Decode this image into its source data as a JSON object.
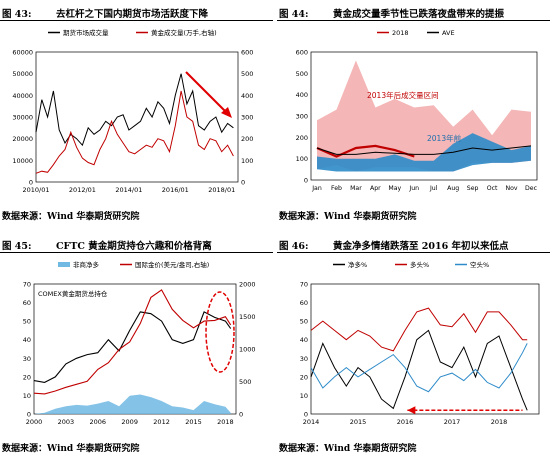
{
  "panels": [
    {
      "number": "图 43:",
      "title": "去杠杆之下国内期货市场活跃度下降",
      "source": "数据来源：Wind  华泰期货研究院",
      "chart_data": {
        "type": "line",
        "series": [
          {
            "name": "期货市场成交量",
            "color": "#000000",
            "axis": "left",
            "x": [
              2010.0,
              2010.25,
              2010.5,
              2010.75,
              2011.0,
              2011.25,
              2011.5,
              2011.75,
              2012.0,
              2012.25,
              2012.5,
              2012.75,
              2013.0,
              2013.25,
              2013.5,
              2013.75,
              2014.0,
              2014.25,
              2014.5,
              2014.75,
              2015.0,
              2015.25,
              2015.5,
              2015.75,
              2016.0,
              2016.25,
              2016.5,
              2016.75,
              2017.0,
              2017.25,
              2017.5,
              2017.75,
              2018.0,
              2018.25,
              2018.5
            ],
            "y": [
              23000,
              38000,
              30000,
              42000,
              24000,
              18000,
              22000,
              20000,
              17000,
              25000,
              22000,
              24000,
              28000,
              26000,
              30000,
              31000,
              24000,
              26000,
              28000,
              34000,
              30000,
              37000,
              34000,
              27000,
              40000,
              50000,
              36000,
              42000,
              26000,
              24000,
              28000,
              30000,
              23000,
              27000,
              25000
            ]
          },
          {
            "name": "黄金成交量(万手,右轴)",
            "color": "#c00000",
            "axis": "right",
            "x": [
              2010.0,
              2010.25,
              2010.5,
              2010.75,
              2011.0,
              2011.25,
              2011.5,
              2011.75,
              2012.0,
              2012.25,
              2012.5,
              2012.75,
              2013.0,
              2013.25,
              2013.5,
              2013.75,
              2014.0,
              2014.25,
              2014.5,
              2014.75,
              2015.0,
              2015.25,
              2015.5,
              2015.75,
              2016.0,
              2016.25,
              2016.5,
              2016.75,
              2017.0,
              2017.25,
              2017.5,
              2017.75,
              2018.0,
              2018.25,
              2018.5
            ],
            "y": [
              40,
              50,
              45,
              80,
              120,
              150,
              230,
              160,
              110,
              90,
              80,
              150,
              200,
              280,
              220,
              180,
              140,
              130,
              150,
              170,
              160,
              200,
              190,
              140,
              260,
              420,
              300,
              280,
              170,
              150,
              200,
              190,
              140,
              170,
              120
            ]
          }
        ],
        "xticks": [
          "2010/01",
          "2012/01",
          "2014/01",
          "2016/01",
          "2018/01"
        ],
        "ylim": [
          0,
          60000
        ],
        "yticks": [
          "0",
          "10000",
          "20000",
          "30000",
          "40000",
          "50000",
          "60000"
        ],
        "y2lim": [
          0,
          600
        ],
        "y2ticks": [
          "0",
          "100",
          "200",
          "300",
          "400",
          "500",
          "600"
        ]
      }
    },
    {
      "number": "图 44:",
      "title": "黄金成交量季节性已跌落夜盘带来的提振",
      "source": "数据来源：Wind  华泰期货研究院",
      "chart_data": {
        "type": "area",
        "categories": [
          "Jan",
          "Feb",
          "Mar",
          "Apr",
          "May",
          "Jun",
          "Jul",
          "Aug",
          "Sep",
          "Oct",
          "Nov",
          "Dec"
        ],
        "range_band": {
          "upper": [
            280,
            330,
            560,
            340,
            380,
            340,
            350,
            250,
            330,
            210,
            330,
            320
          ],
          "lower": [
            50,
            70,
            40,
            60,
            60,
            60,
            40,
            40,
            80,
            80,
            80,
            90
          ],
          "color": "#f4b6b6"
        },
        "post2013_band": {
          "upper": [
            110,
            100,
            100,
            100,
            120,
            90,
            90,
            170,
            220,
            180,
            140,
            160
          ],
          "lower": [
            50,
            40,
            40,
            40,
            40,
            40,
            40,
            40,
            70,
            80,
            80,
            90
          ],
          "color": "#2e8bc9"
        },
        "series": [
          {
            "name": "2018",
            "color": "#c00000",
            "values": [
              150,
              110,
              150,
              160,
              140,
              110,
              null,
              null,
              null,
              null,
              null,
              null
            ]
          },
          {
            "name": "AVE",
            "color": "#000000",
            "values": [
              150,
              120,
              120,
              130,
              125,
              120,
              120,
              130,
              150,
              140,
              150,
              160
            ]
          }
        ],
        "ylim": [
          0,
          600
        ],
        "yticks": [
          "0",
          "100",
          "200",
          "300",
          "400",
          "500",
          "600"
        ],
        "annotations": [
          "2013年后成交量区间",
          "2013年前"
        ]
      }
    },
    {
      "number": "图 45:",
      "title": "CFTC 黄金期货持仓六趣和价格背离",
      "source": "数据来源：Wind  华泰期货研究院",
      "chart_data": {
        "type": "area",
        "series": [
          {
            "name": "非商净多",
            "color": "#6fb9e3",
            "axis": "right",
            "kind": "area",
            "x": [
              2000,
              2001,
              2002,
              2003,
              2004,
              2005,
              2006,
              2007,
              2008,
              2009,
              2010,
              2011,
              2012,
              2013,
              2014,
              2015,
              2016,
              2017,
              2018,
              2018.5
            ],
            "y": [
              0,
              20,
              80,
              120,
              140,
              130,
              160,
              200,
              120,
              280,
              300,
              260,
              200,
              120,
              100,
              60,
              200,
              150,
              110,
              20
            ]
          },
          {
            "name": "国际金价(美元/盎司,右轴)",
            "color": "#c00000",
            "axis": "left",
            "kind": "line",
            "x": [
              2000,
              2001,
              2002,
              2003,
              2004,
              2005,
              2006,
              2007,
              2008,
              2009,
              2010,
              2011,
              2012,
              2013,
              2014,
              2015,
              2016,
              2017,
              2018,
              2018.5
            ],
            "y": [
              2.8,
              2.7,
              3.1,
              3.6,
              4.0,
              4.4,
              6.0,
              6.9,
              8.7,
              9.7,
              12.2,
              15.7,
              16.7,
              14.1,
              12.6,
              11.6,
              12.5,
              12.6,
              13.1,
              12.0
            ]
          },
          {
            "name": "COMEX黄金期货总持仓",
            "color": "#000000",
            "axis": "left",
            "kind": "line",
            "x": [
              2000,
              2001,
              2002,
              2003,
              2004,
              2005,
              2006,
              2007,
              2008,
              2009,
              2010,
              2011,
              2012,
              2013,
              2014,
              2015,
              2016,
              2017,
              2018,
              2018.5
            ],
            "y": [
              18,
              17,
              20,
              27,
              30,
              32,
              33,
              40,
              34,
              45,
              55,
              54,
              50,
              40,
              38,
              40,
              55,
              52,
              50,
              46
            ]
          }
        ],
        "xticks": [
          "2000",
          "2003",
          "2006",
          "2009",
          "2012",
          "2015",
          "2018"
        ],
        "ylim": [
          0,
          70
        ],
        "yticks": [
          "0",
          "10",
          "20",
          "30",
          "40",
          "50",
          "60",
          "70"
        ],
        "y2lim": [
          0,
          2000
        ],
        "y2ticks": [
          "0",
          "500",
          "1000",
          "1500",
          "2000"
        ],
        "annotations": [
          "COMEX黄金期货总持仓"
        ]
      }
    },
    {
      "number": "图 46:",
      "title": "黄金净多情绪跌落至 2016 年初以来低点",
      "source": "数据来源：Wind  华泰期货研究院",
      "chart_data": {
        "type": "line",
        "series": [
          {
            "name": "净多%",
            "color": "#000000",
            "x": [
              2014.0,
              2014.25,
              2014.5,
              2014.75,
              2015.0,
              2015.25,
              2015.5,
              2015.75,
              2016.0,
              2016.25,
              2016.5,
              2016.75,
              2017.0,
              2017.25,
              2017.5,
              2017.75,
              2018.0,
              2018.25,
              2018.5,
              2018.6
            ],
            "y": [
              20,
              38,
              25,
              15,
              25,
              20,
              8,
              3,
              20,
              40,
              45,
              28,
              25,
              36,
              20,
              38,
              42,
              25,
              8,
              2
            ]
          },
          {
            "name": "多头%",
            "color": "#c00000",
            "x": [
              2014.0,
              2014.25,
              2014.5,
              2014.75,
              2015.0,
              2015.25,
              2015.5,
              2015.75,
              2016.0,
              2016.25,
              2016.5,
              2016.75,
              2017.0,
              2017.25,
              2017.5,
              2017.75,
              2018.0,
              2018.25,
              2018.5,
              2018.6
            ],
            "y": [
              45,
              50,
              45,
              40,
              45,
              42,
              36,
              34,
              45,
              55,
              57,
              48,
              47,
              54,
              44,
              55,
              55,
              48,
              40,
              40
            ]
          },
          {
            "name": "空头%",
            "color": "#2e8bc9",
            "x": [
              2014.0,
              2014.25,
              2014.5,
              2014.75,
              2015.0,
              2015.25,
              2015.5,
              2015.75,
              2016.0,
              2016.25,
              2016.5,
              2016.75,
              2017.0,
              2017.25,
              2017.5,
              2017.75,
              2018.0,
              2018.25,
              2018.5,
              2018.6
            ],
            "y": [
              25,
              14,
              20,
              25,
              20,
              24,
              28,
              32,
              25,
              15,
              12,
              20,
              22,
              18,
              24,
              17,
              14,
              22,
              33,
              38
            ]
          }
        ],
        "xticks": [
          "2014",
          "2015",
          "2016",
          "2017",
          "2018"
        ],
        "ylim": [
          0,
          70
        ],
        "yticks": [
          "0",
          "10",
          "20",
          "30",
          "40",
          "50",
          "60",
          "70"
        ]
      }
    }
  ]
}
